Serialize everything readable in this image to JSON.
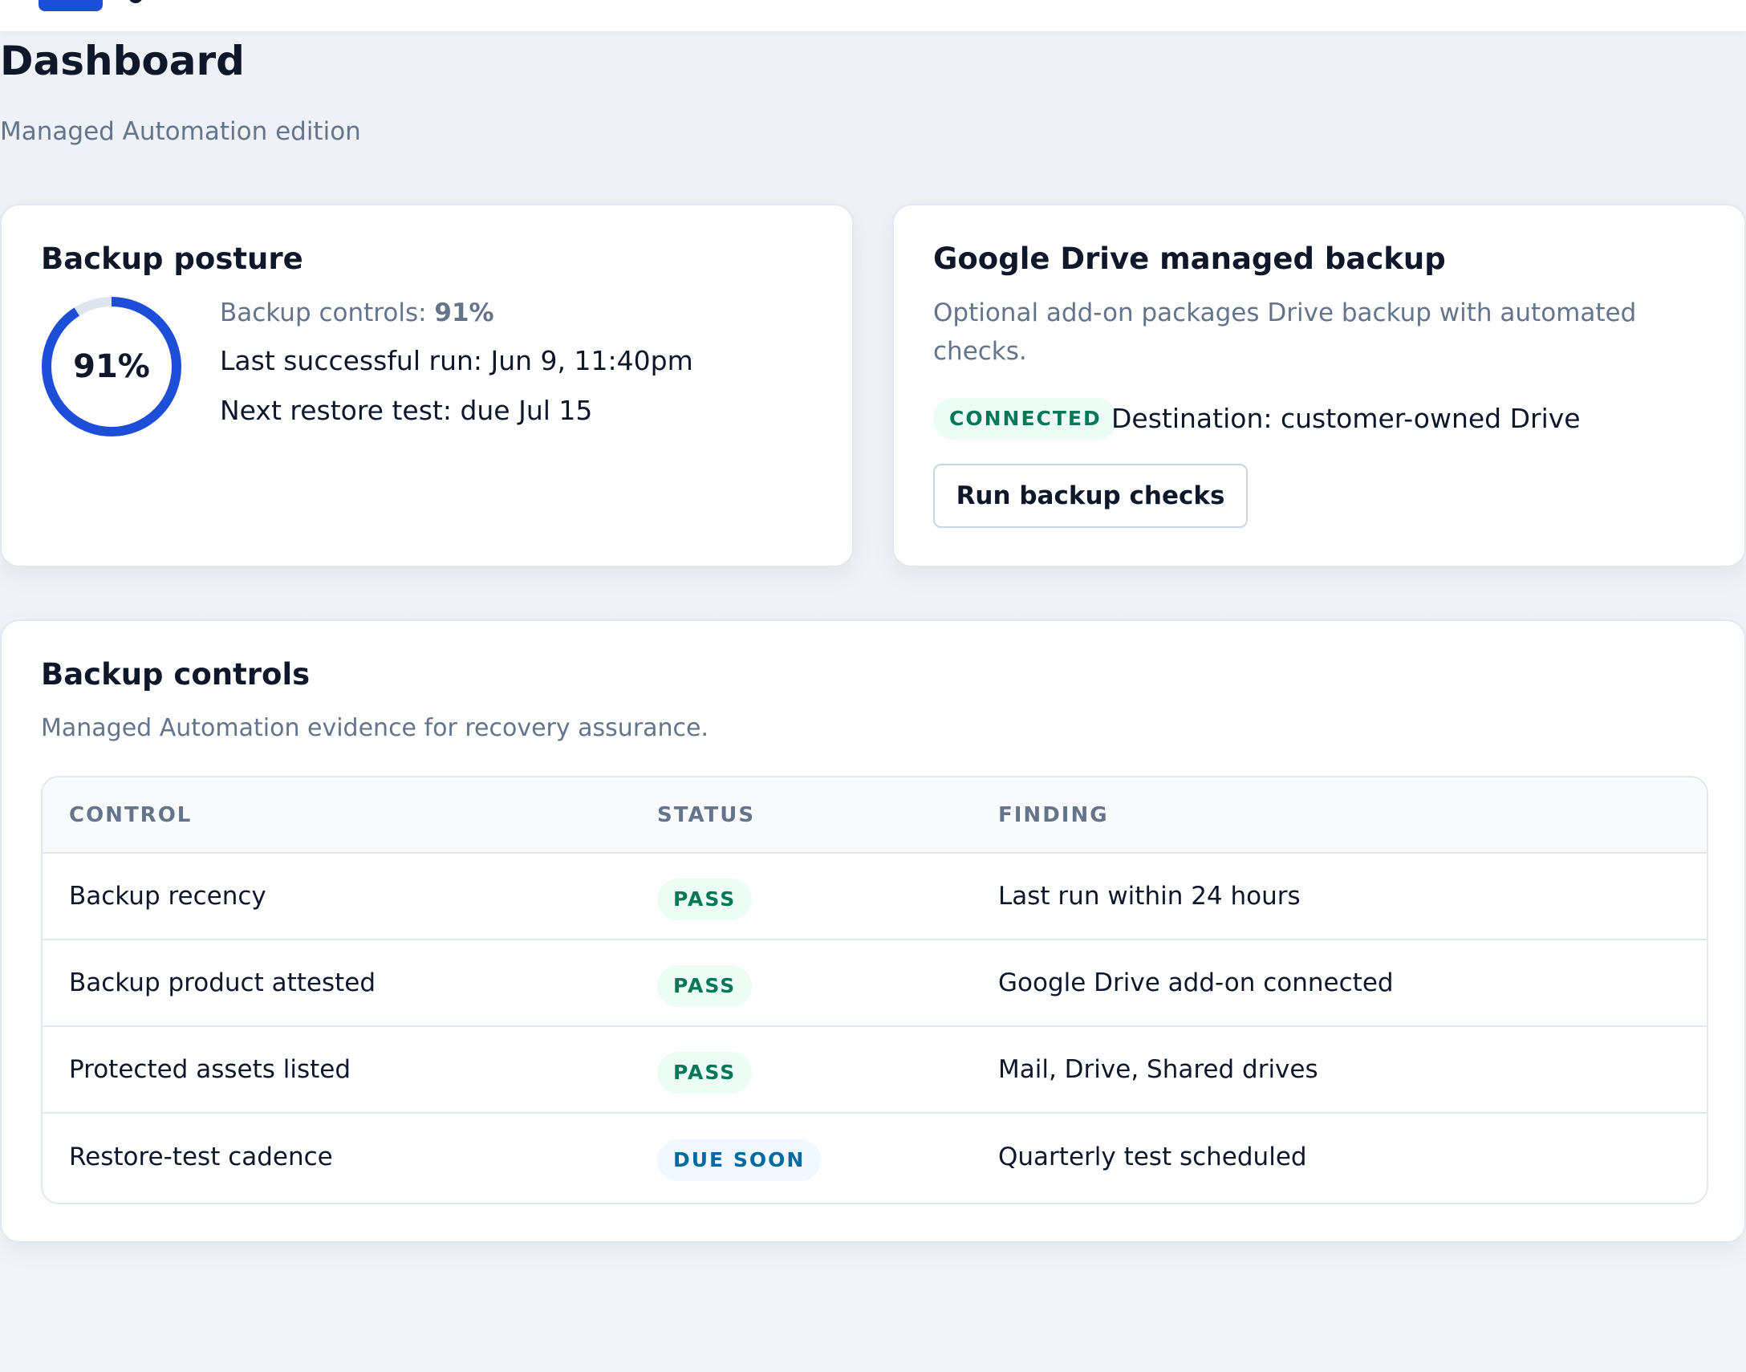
{
  "page": {
    "title": "Dashboard",
    "subtitle": "Managed Automation edition"
  },
  "posture": {
    "title": "Backup posture",
    "ring_value": "91%",
    "ring_fraction": 0.91,
    "controls_label": "Backup controls:",
    "controls_value": "91%",
    "last_run": "Last successful run: Jun 9, 11:40pm",
    "next_restore": "Next restore test: due Jul 15",
    "colors": {
      "ring": "#1d4ed8",
      "track": "#dde5ee"
    }
  },
  "drive": {
    "title": "Google Drive managed backup",
    "description": "Optional add-on packages Drive backup with automated checks.",
    "status_badge": "CONNECTED",
    "destination": "Destination: customer-owned Drive",
    "run_button": "Run backup checks"
  },
  "controls": {
    "title": "Backup controls",
    "description": "Managed Automation evidence for recovery assurance.",
    "columns": [
      "CONTROL",
      "STATUS",
      "FINDING"
    ],
    "rows": [
      {
        "control": "Backup recency",
        "status": "PASS",
        "finding": "Last run within 24 hours"
      },
      {
        "control": "Backup product attested",
        "status": "PASS",
        "finding": "Google Drive add-on connected"
      },
      {
        "control": "Protected assets listed",
        "status": "PASS",
        "finding": "Mail, Drive, Shared drives"
      },
      {
        "control": "Restore-test cadence",
        "status": "DUE SOON",
        "finding": "Quarterly test scheduled"
      }
    ]
  }
}
